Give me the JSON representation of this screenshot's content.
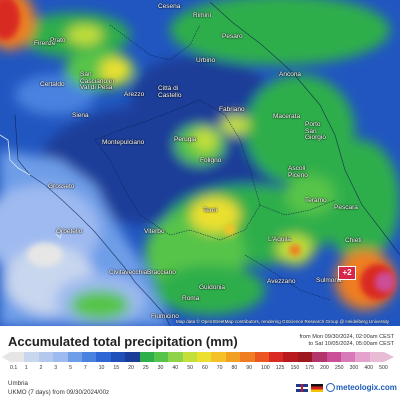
{
  "map": {
    "cities": [
      "Cesena",
      "Rimini",
      "Prato",
      "Firenze",
      "Pesaro",
      "Urbino",
      "San Casciano in Val di Pesa",
      "Ancona",
      "Certaldo",
      "Arezzo",
      "Città di Castello",
      "Macerata",
      "Siena",
      "Montepulciano",
      "Fabriano",
      "Porto San Giorgio",
      "Perugia",
      "Foligno",
      "Ascoli Piceno",
      "Grosseto",
      "Teramo",
      "Pescara",
      "Terni",
      "Orbetello",
      "Viterbo",
      "L'Aquila",
      "Chieti",
      "Sulmona",
      "Civitavecchia",
      "Bracciano",
      "Avezzano",
      "Guidonia",
      "Roma",
      "Fiumicino"
    ],
    "badge": "+2",
    "attribution": "Map data © OpenStreetMap contributors, rendering GIScience Research Group @ Heidelberg University"
  },
  "legend": {
    "title": "Accumulated total precipitation (mm)",
    "period_from": "from Mon 09/30/2024, 02:00am CEST",
    "period_to": "to Sat 10/05/2024, 05:00am CEST",
    "ticks": [
      "0.1",
      "1",
      "2",
      "3",
      "5",
      "7",
      "10",
      "15",
      "20",
      "25",
      "30",
      "40",
      "50",
      "60",
      "70",
      "80",
      "90",
      "100",
      "125",
      "150",
      "175",
      "200",
      "250",
      "300",
      "400",
      "500"
    ],
    "colors": [
      "#e6e6e6",
      "#c8d6ee",
      "#b4c8ee",
      "#9ebaf0",
      "#6e9ee8",
      "#4a82e0",
      "#2e66d6",
      "#1f4fb8",
      "#1a3d98",
      "#2fae4c",
      "#56c44a",
      "#8ed34a",
      "#c3df3a",
      "#ece02e",
      "#f4c227",
      "#f2a024",
      "#ef7e22",
      "#ea5520",
      "#d92b22",
      "#b81a1f",
      "#9c1920",
      "#b2366c",
      "#cb4f98",
      "#d97ab8",
      "#e5a2cc",
      "#e9bcd6"
    ],
    "region": "Umbria",
    "model": "UKMO (7 days) from 09/30/2024/00z",
    "logo": "meteologix.com"
  }
}
